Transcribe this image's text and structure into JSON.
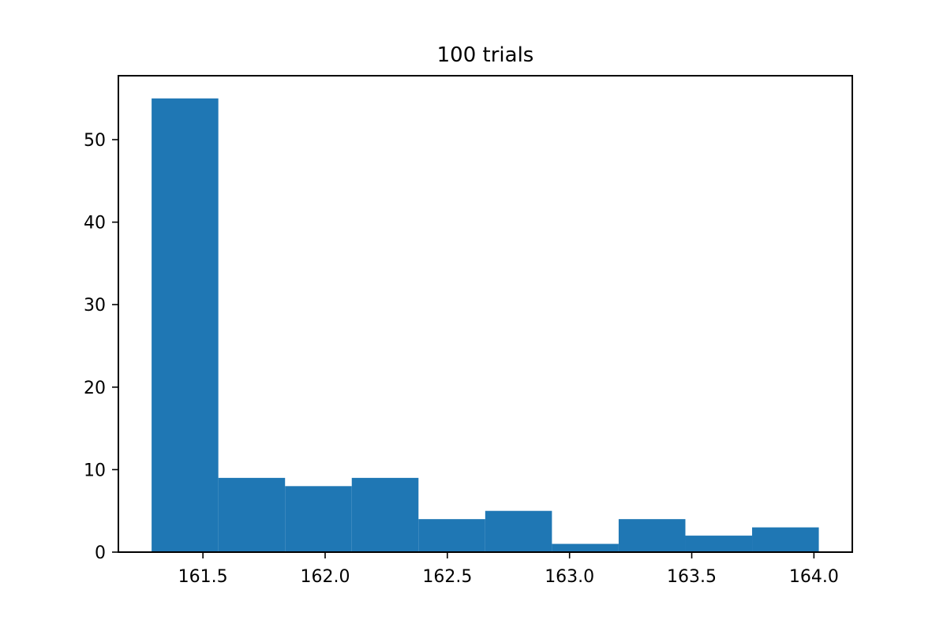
{
  "chart_data": {
    "type": "bar",
    "title": "100 trials",
    "xlabel": "",
    "ylabel": "",
    "bins": [
      {
        "start": 161.29,
        "end": 161.563,
        "count": 55
      },
      {
        "start": 161.563,
        "end": 161.836,
        "count": 9
      },
      {
        "start": 161.836,
        "end": 162.109,
        "count": 8
      },
      {
        "start": 162.109,
        "end": 162.382,
        "count": 9
      },
      {
        "start": 162.382,
        "end": 162.655,
        "count": 4
      },
      {
        "start": 162.655,
        "end": 162.928,
        "count": 5
      },
      {
        "start": 162.928,
        "end": 163.201,
        "count": 1
      },
      {
        "start": 163.201,
        "end": 163.474,
        "count": 4
      },
      {
        "start": 163.474,
        "end": 163.747,
        "count": 2
      },
      {
        "start": 163.747,
        "end": 164.02,
        "count": 3
      }
    ],
    "xlim": [
      161.154,
      164.157
    ],
    "ylim": [
      0,
      57.75
    ],
    "xticks": [
      161.5,
      162.0,
      162.5,
      163.0,
      163.5,
      164.0
    ],
    "xtick_labels": [
      "161.5",
      "162.0",
      "162.5",
      "163.0",
      "163.5",
      "164.0"
    ],
    "yticks": [
      0,
      10,
      20,
      30,
      40,
      50
    ],
    "ytick_labels": [
      "0",
      "10",
      "20",
      "30",
      "40",
      "50"
    ],
    "grid": false,
    "legend": "none",
    "bar_color": "#1f77b4"
  }
}
